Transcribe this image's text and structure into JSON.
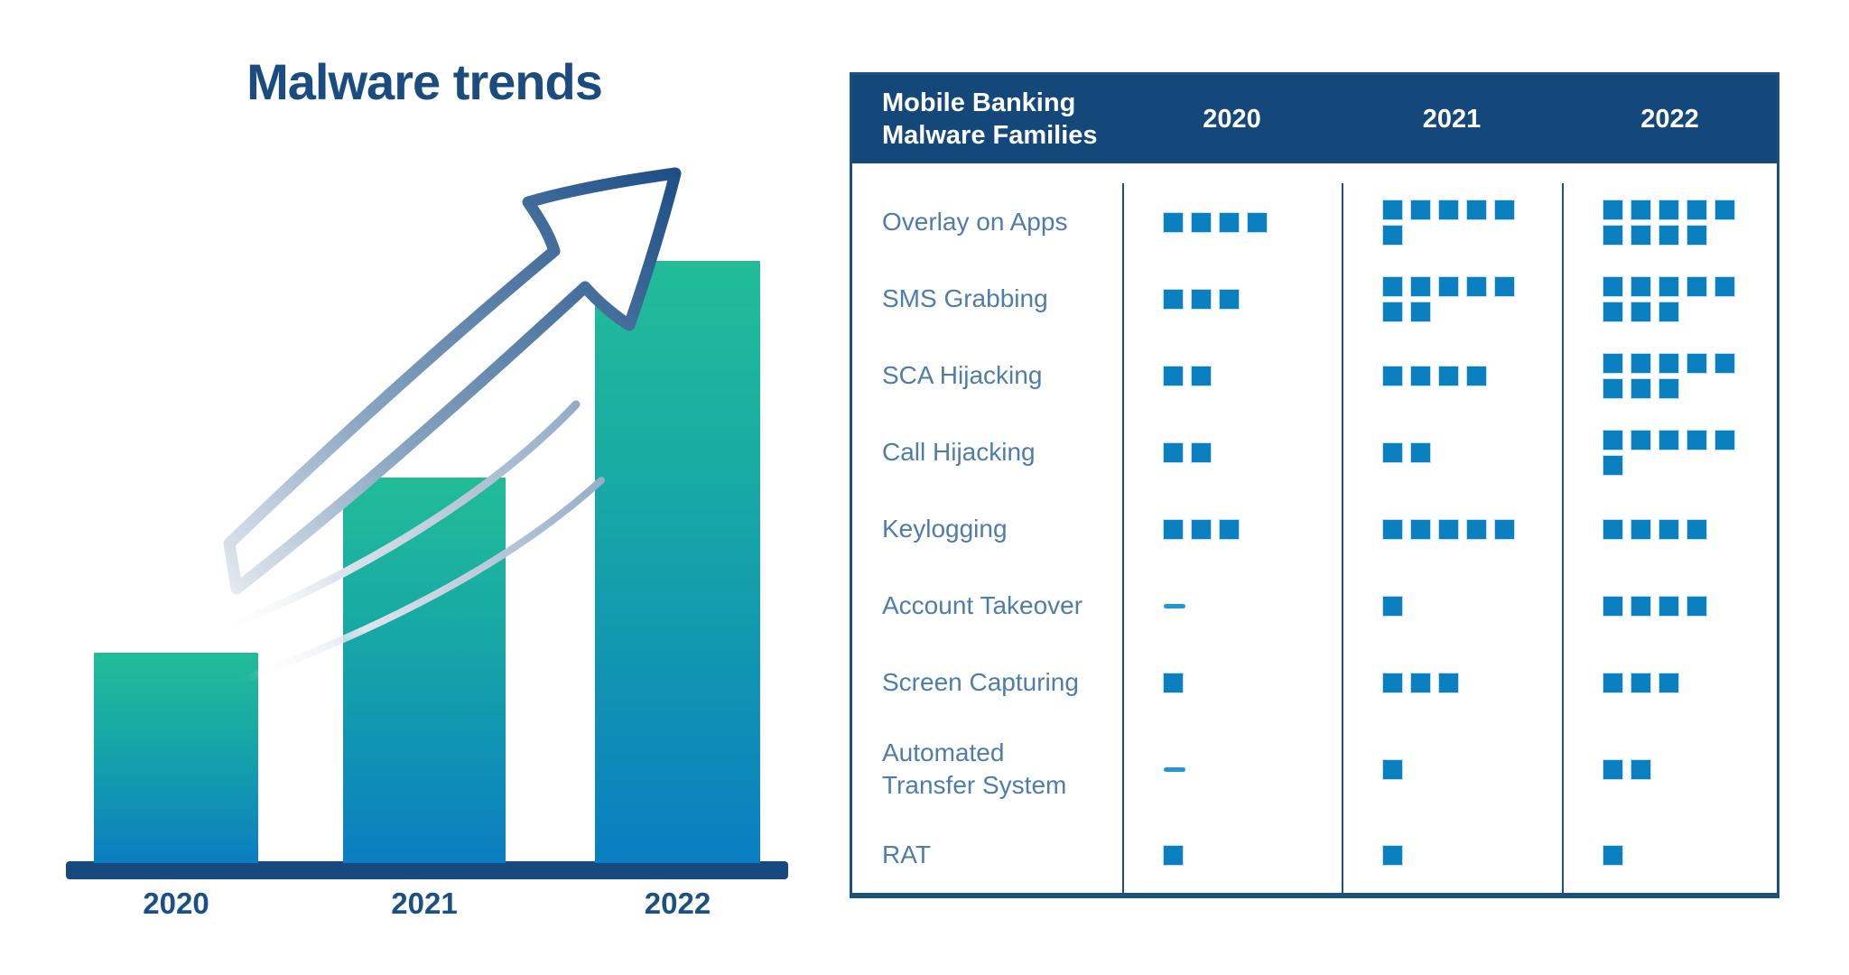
{
  "title": "Malware trends",
  "chart_data": {
    "type": "bar",
    "title": "Malware trends",
    "categories": [
      "2020",
      "2021",
      "2022"
    ],
    "values": [
      35,
      64,
      100
    ],
    "xlabel": "",
    "ylabel": "",
    "ylim": [
      0,
      100
    ],
    "grid": false,
    "bar_gradient": [
      "#21bd98",
      "#0a7ec1"
    ],
    "annotation": "upward curved growth arrow"
  },
  "table": {
    "header": {
      "corner": "Mobile Banking\nMalware Families",
      "years": [
        "2020",
        "2021",
        "2022"
      ]
    },
    "rows": [
      {
        "label": "Overlay on Apps",
        "values": [
          4,
          6,
          9
        ]
      },
      {
        "label": "SMS Grabbing",
        "values": [
          3,
          7,
          8
        ]
      },
      {
        "label": "SCA Hijacking",
        "values": [
          2,
          4,
          8
        ]
      },
      {
        "label": "Call Hijacking",
        "values": [
          2,
          2,
          6
        ]
      },
      {
        "label": "Keylogging",
        "values": [
          3,
          5,
          4
        ]
      },
      {
        "label": "Account Takeover",
        "values": [
          0,
          1,
          4
        ]
      },
      {
        "label": "Screen Capturing",
        "values": [
          1,
          3,
          3
        ]
      },
      {
        "label": "Automated\nTransfer System",
        "values": [
          0,
          1,
          2
        ]
      },
      {
        "label": "RAT",
        "values": [
          1,
          1,
          1
        ]
      }
    ],
    "none_marker": "—"
  },
  "colors": {
    "header_navy": "#14487a",
    "border_navy": "#1c4f82",
    "square_blue": "#0a80c0",
    "dash_blue": "#2496d3",
    "label_blue": "#4f7da9",
    "title_navy": "#1b4c80",
    "bar_top_green": "#21bd98",
    "bar_bottom_blue": "#0a7ec1",
    "arrow_navy": "#1d4e86"
  }
}
